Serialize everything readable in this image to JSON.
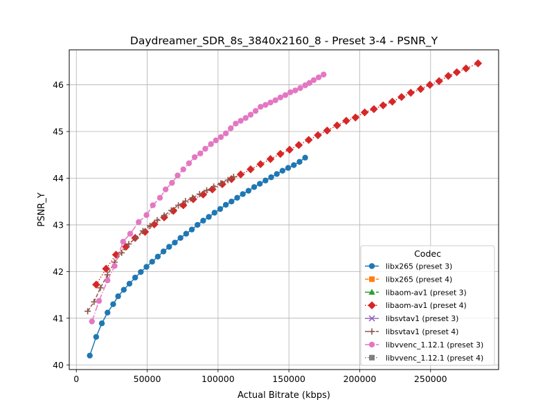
{
  "chart_data": {
    "type": "line",
    "title": "Daydreamer_SDR_8s_3840x2160_8 - Preset 3-4 - PSNR_Y",
    "xlabel": "Actual Bitrate (kbps)",
    "ylabel": "PSNR_Y",
    "xlim": [
      -5000,
      298000
    ],
    "ylim": [
      39.9,
      46.75
    ],
    "xticks": [
      0,
      50000,
      100000,
      150000,
      200000,
      250000
    ],
    "yticks": [
      40,
      41,
      42,
      43,
      44,
      45,
      46
    ],
    "grid": true,
    "legend": {
      "title": "Codec",
      "placement": "lower-right"
    },
    "series": [
      {
        "name": "libx265 (preset 3)",
        "color": "#1f77b4",
        "marker": "circle",
        "line": "solid",
        "visible": true,
        "x": [
          9500,
          14000,
          18000,
          22000,
          26000,
          29500,
          33500,
          37500,
          41500,
          45500,
          49500,
          53500,
          57500,
          61500,
          65500,
          69500,
          73500,
          77500,
          81500,
          85500,
          89500,
          93500,
          97500,
          101500,
          105500,
          109500,
          113500,
          117500,
          121500,
          125500,
          129500,
          133500,
          137500,
          141500,
          145500,
          149500,
          153500,
          157500,
          161500
        ],
        "y": [
          40.2,
          40.6,
          40.89,
          41.12,
          41.3,
          41.47,
          41.61,
          41.74,
          41.87,
          41.99,
          42.1,
          42.21,
          42.32,
          42.43,
          42.53,
          42.62,
          42.72,
          42.81,
          42.9,
          43.0,
          43.09,
          43.17,
          43.26,
          43.34,
          43.43,
          43.5,
          43.58,
          43.66,
          43.73,
          43.81,
          43.88,
          43.95,
          44.02,
          44.09,
          44.16,
          44.22,
          44.28,
          44.35,
          44.44
        ]
      },
      {
        "name": "libx265 (preset 4)",
        "color": "#ff7f0e",
        "marker": "square",
        "line": "dashed",
        "visible": false,
        "x": [],
        "y": []
      },
      {
        "name": "libaom-av1 (preset 3)",
        "color": "#2ca02c",
        "marker": "triangle",
        "line": "dashdot",
        "visible": false,
        "x": [],
        "y": []
      },
      {
        "name": "libaom-av1 (preset 4)",
        "color": "#d62728",
        "marker": "diamond",
        "line": "dotted",
        "visible": true,
        "x": [
          14000,
          21000,
          28000,
          35000,
          41500,
          48500,
          55000,
          62000,
          68500,
          75500,
          82500,
          89500,
          96000,
          103000,
          109500,
          116000,
          123000,
          130000,
          137000,
          144000,
          150500,
          157000,
          164000,
          170500,
          177000,
          184000,
          190500,
          197000,
          203500,
          210000,
          216500,
          223000,
          229500,
          236000,
          243000,
          249500,
          256000,
          262500,
          268500,
          275000,
          283500
        ],
        "y": [
          41.72,
          42.06,
          42.36,
          42.53,
          42.72,
          42.85,
          43.01,
          43.16,
          43.3,
          43.42,
          43.55,
          43.65,
          43.76,
          43.87,
          43.98,
          44.08,
          44.19,
          44.3,
          44.41,
          44.52,
          44.61,
          44.71,
          44.82,
          44.92,
          45.02,
          45.13,
          45.23,
          45.3,
          45.41,
          45.48,
          45.56,
          45.64,
          45.74,
          45.83,
          45.91,
          46.0,
          46.08,
          46.19,
          46.27,
          46.35,
          46.46
        ]
      },
      {
        "name": "libsvtav1 (preset 3)",
        "color": "#9467bd",
        "marker": "x",
        "line": "solid",
        "visible": false,
        "x": [],
        "y": []
      },
      {
        "name": "libsvtav1 (preset 4)",
        "color": "#8c564b",
        "marker": "plus",
        "line": "dashed",
        "visible": true,
        "x": [
          8000,
          12500,
          17000,
          22000,
          27000,
          32000,
          37000,
          42000,
          47000,
          52000,
          57000,
          62000,
          67000,
          72000,
          77000,
          82000,
          87000,
          92000,
          97000,
          102000,
          107000,
          111000
        ],
        "y": [
          41.15,
          41.35,
          41.65,
          41.93,
          42.2,
          42.4,
          42.59,
          42.72,
          42.87,
          42.98,
          43.1,
          43.2,
          43.31,
          43.42,
          43.51,
          43.58,
          43.66,
          43.74,
          43.82,
          43.89,
          43.96,
          44.03
        ]
      },
      {
        "name": "libvvenc_1.12.1 (preset 3)",
        "color": "#e377c2",
        "marker": "circle",
        "line": "dashdot",
        "visible": true,
        "x": [
          11000,
          16000,
          22000,
          27000,
          33000,
          38000,
          44000,
          49500,
          54000,
          59000,
          63000,
          67500,
          71500,
          75500,
          79500,
          83500,
          87500,
          91000,
          95000,
          98500,
          102000,
          105500,
          109000,
          112500,
          116000,
          119500,
          123000,
          126500,
          130000,
          133500,
          137000,
          140500,
          144000,
          147500,
          151000,
          154500,
          158000,
          161500,
          164500,
          167500,
          171000,
          174500
        ],
        "y": [
          40.93,
          41.37,
          41.81,
          42.12,
          42.64,
          42.81,
          43.06,
          43.21,
          43.42,
          43.58,
          43.76,
          43.9,
          44.06,
          44.19,
          44.32,
          44.45,
          44.53,
          44.63,
          44.73,
          44.81,
          44.88,
          44.96,
          45.07,
          45.17,
          45.23,
          45.29,
          45.36,
          45.44,
          45.53,
          45.57,
          45.62,
          45.67,
          45.73,
          45.78,
          45.84,
          45.88,
          45.93,
          45.99,
          46.04,
          46.1,
          46.16,
          46.22
        ]
      },
      {
        "name": "libvvenc_1.12.1 (preset 4)",
        "color": "#7f7f7f",
        "marker": "square",
        "line": "dotted",
        "visible": false,
        "x": [],
        "y": []
      }
    ]
  }
}
